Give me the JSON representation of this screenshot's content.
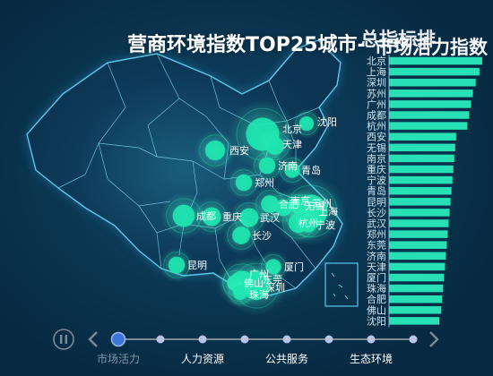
{
  "title": "营商环境指数TOP25城市-",
  "subtitle": "市场活力指数",
  "overlay_text": "总指标排",
  "colors": {
    "background": "#08304a",
    "map_fill": "#0c3d5c",
    "map_stroke": "#5fc7ea",
    "bar": "#27e0b6",
    "bubble": "#1ee6b0",
    "label": "#cfe6f0",
    "timeline_active": "#3a77d8",
    "timeline_dot": "#b7c4e6",
    "timeline_line": "#7d8a99"
  },
  "chart_data": [
    {
      "type": "scatter",
      "description_key": "map-bubbles",
      "cities": [
        {
          "name": "北京",
          "size": 30
        },
        {
          "name": "天津",
          "size": 16
        },
        {
          "name": "沈阳",
          "size": 13
        },
        {
          "name": "西安",
          "size": 18
        },
        {
          "name": "济南",
          "size": 15
        },
        {
          "name": "青岛",
          "size": 14
        },
        {
          "name": "郑州",
          "size": 15
        },
        {
          "name": "合肥",
          "size": 16
        },
        {
          "name": "无锡",
          "size": 13
        },
        {
          "name": "南京",
          "size": 15
        },
        {
          "name": "上海",
          "size": 30
        },
        {
          "name": "苏州",
          "size": 16
        },
        {
          "name": "杭州",
          "size": 18
        },
        {
          "name": "宁波",
          "size": 14
        },
        {
          "name": "成都",
          "size": 20
        },
        {
          "name": "重庆",
          "size": 17
        },
        {
          "name": "武汉",
          "size": 17
        },
        {
          "name": "长沙",
          "size": 16
        },
        {
          "name": "昆明",
          "size": 15
        },
        {
          "name": "厦门",
          "size": 14
        },
        {
          "name": "东莞",
          "size": 13
        },
        {
          "name": "佛山",
          "size": 14
        },
        {
          "name": "广州",
          "size": 22
        },
        {
          "name": "深圳",
          "size": 26
        },
        {
          "name": "珠海",
          "size": 13
        }
      ]
    },
    {
      "type": "bar",
      "orientation": "horizontal",
      "categories": [
        "北京",
        "上海",
        "深圳",
        "苏州",
        "广州",
        "成都",
        "杭州",
        "西安",
        "无锡",
        "南京",
        "重庆",
        "宁波",
        "青岛",
        "昆明",
        "长沙",
        "武汉",
        "郑州",
        "东莞",
        "济南",
        "天津",
        "厦门",
        "珠海",
        "合肥",
        "佛山",
        "沈阳"
      ],
      "values": [
        100,
        97,
        93,
        90,
        88,
        86,
        84,
        72,
        71,
        70,
        69,
        68,
        67,
        66,
        65,
        64,
        63,
        62,
        61,
        60,
        59,
        58,
        57,
        56,
        54
      ],
      "xlim": [
        0,
        100
      ]
    }
  ],
  "timeline": {
    "items": [
      {
        "label": "市场活力",
        "active": true
      },
      {
        "label": "",
        "active": false
      },
      {
        "label": "人力资源",
        "active": false
      },
      {
        "label": "",
        "active": false
      },
      {
        "label": "公共服务",
        "active": false
      },
      {
        "label": "",
        "active": false
      },
      {
        "label": "生态环境",
        "active": false
      },
      {
        "label": "",
        "active": false
      }
    ]
  }
}
